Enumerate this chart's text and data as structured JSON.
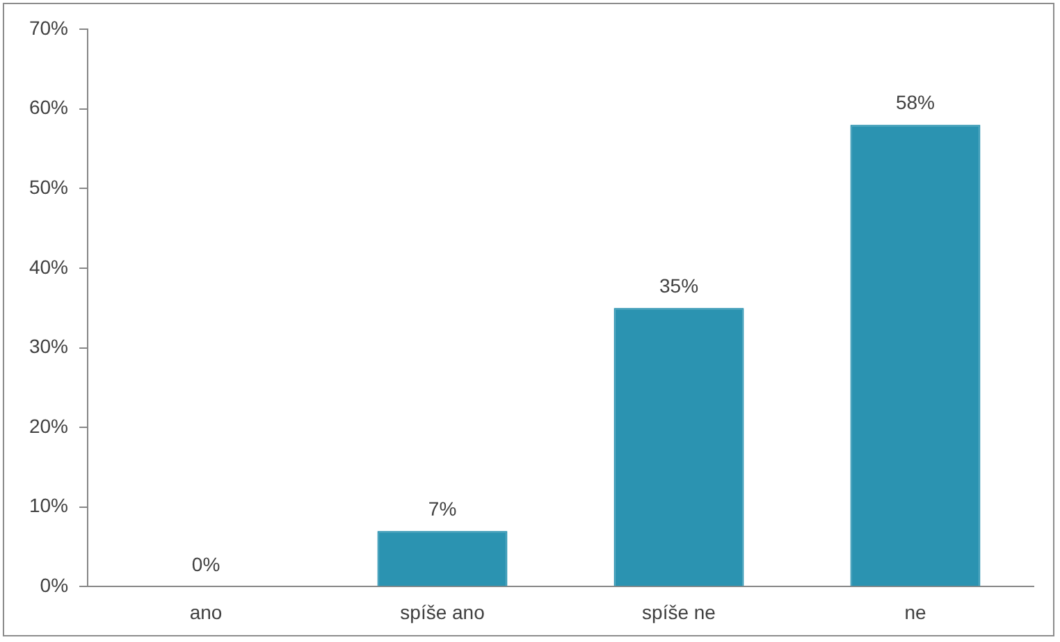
{
  "chart_data": {
    "type": "bar",
    "categories": [
      "ano",
      "spíše ano",
      "spíše ne",
      "ne"
    ],
    "values": [
      0,
      7,
      35,
      58
    ],
    "value_labels": [
      "0%",
      "7%",
      "35%",
      "58%"
    ],
    "color": "#2b93b1",
    "ylim": [
      0,
      70
    ],
    "yticks": [
      {
        "value": 0,
        "label": "0%"
      },
      {
        "value": 10,
        "label": "10%"
      },
      {
        "value": 20,
        "label": "20%"
      },
      {
        "value": 30,
        "label": "30%"
      },
      {
        "value": 40,
        "label": "40%"
      },
      {
        "value": 50,
        "label": "50%"
      },
      {
        "value": 60,
        "label": "60%"
      },
      {
        "value": 70,
        "label": "70%"
      }
    ],
    "grid": false,
    "legend": false
  }
}
